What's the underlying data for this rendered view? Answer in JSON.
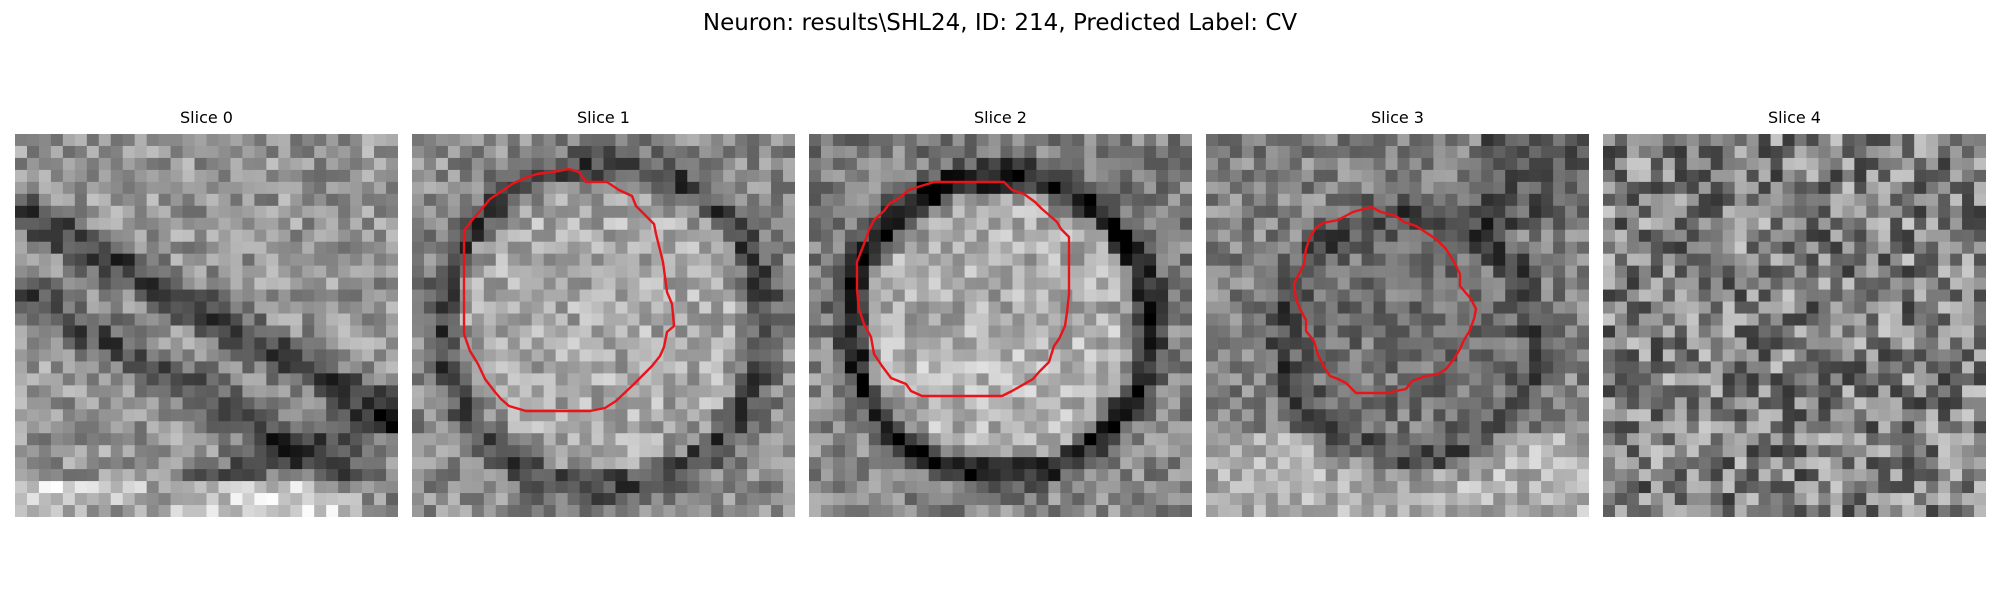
{
  "figure": {
    "title": "Neuron: results\\SHL24, ID: 214, Predicted Label: CV"
  },
  "colors": {
    "background": "#ffffff",
    "contour": "#e8141a",
    "image_colormap": "grayscale"
  },
  "panels": [
    {
      "title": "Slice 0",
      "has_contour": false,
      "seed": 11,
      "structure": "diagonal-membranes"
    },
    {
      "title": "Slice 1",
      "has_contour": true,
      "seed": 23,
      "structure": "cell-body"
    },
    {
      "title": "Slice 2",
      "has_contour": true,
      "seed": 37,
      "structure": "cell-body-dark-ring"
    },
    {
      "title": "Slice 3",
      "has_contour": true,
      "seed": 53,
      "structure": "smaller-cell"
    },
    {
      "title": "Slice 4",
      "has_contour": false,
      "seed": 71,
      "structure": "noise"
    }
  ]
}
